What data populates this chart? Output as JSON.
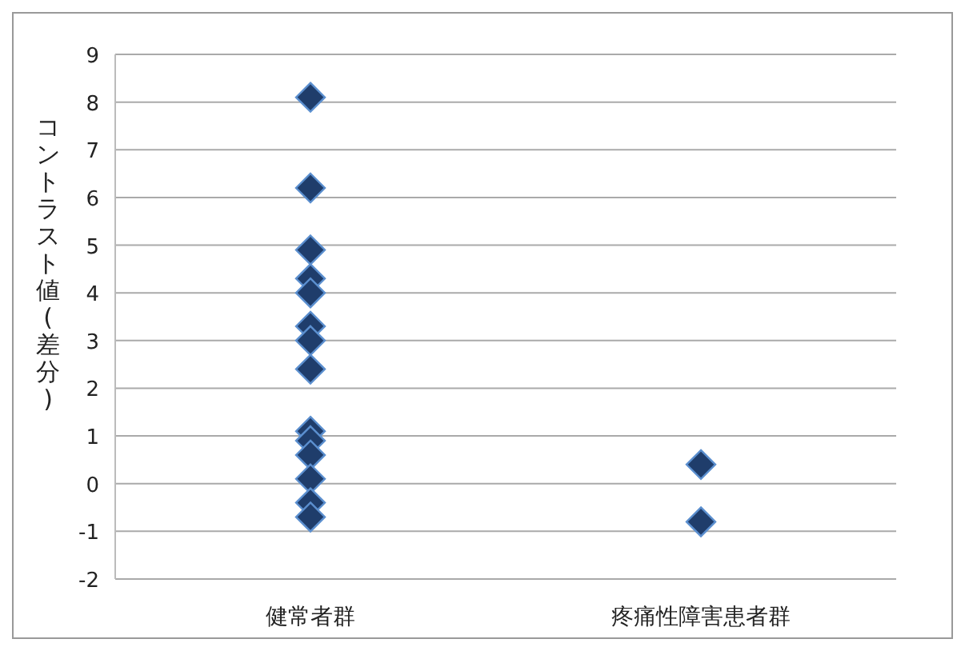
{
  "chart_data": {
    "type": "scatter",
    "ylabel": "コントラスト値(差分)",
    "categories": [
      "健常者群",
      "疼痛性障害患者群"
    ],
    "ylim": [
      -2,
      9
    ],
    "yticks": [
      -2,
      -1,
      0,
      1,
      2,
      3,
      4,
      5,
      6,
      7,
      8,
      9
    ],
    "grid": "y",
    "marker": "diamond",
    "series": [
      {
        "color": "#1f3d6b",
        "x": [
          "健常者群",
          "健常者群",
          "健常者群",
          "健常者群",
          "健常者群",
          "健常者群",
          "健常者群",
          "健常者群",
          "健常者群",
          "健常者群",
          "健常者群",
          "健常者群",
          "健常者群",
          "健常者群",
          "疼痛性障害患者群",
          "疼痛性障害患者群"
        ],
        "values": [
          8.1,
          6.2,
          4.9,
          4.3,
          4.0,
          3.3,
          3.0,
          2.4,
          1.1,
          0.9,
          0.6,
          0.1,
          -0.4,
          -0.7,
          0.4,
          -0.8
        ]
      }
    ]
  }
}
